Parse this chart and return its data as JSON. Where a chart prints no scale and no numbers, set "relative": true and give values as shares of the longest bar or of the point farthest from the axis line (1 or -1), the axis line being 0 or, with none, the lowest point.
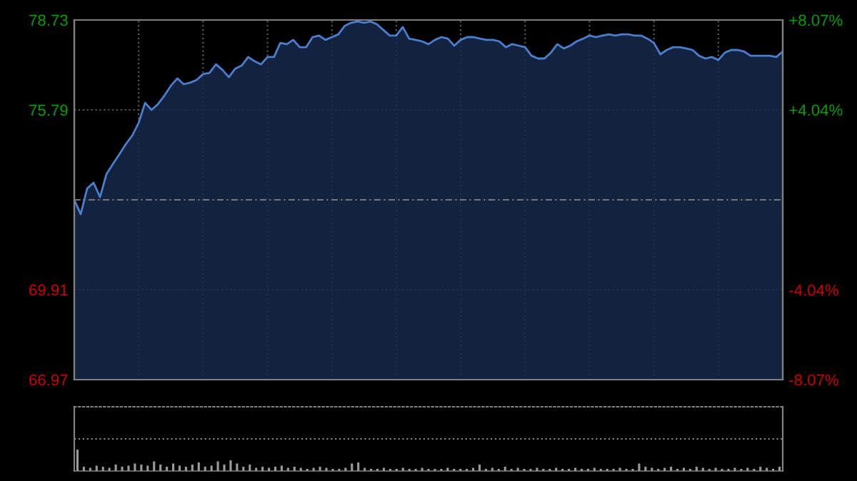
{
  "chart_data": [
    {
      "type": "area",
      "categories": [
        null,
        null,
        null,
        null,
        null,
        null,
        null,
        null,
        null,
        null,
        null,
        null,
        null,
        null,
        null,
        null,
        null,
        null,
        null,
        null,
        null,
        null,
        null,
        null,
        null,
        null,
        null,
        null,
        null,
        null,
        null,
        null,
        null,
        null,
        null,
        null,
        null,
        null,
        null,
        null,
        null,
        null,
        null,
        null,
        null,
        null,
        null,
        null,
        null,
        null,
        null,
        null,
        null,
        null,
        null,
        null,
        null,
        null,
        null,
        null,
        null,
        null,
        null,
        null,
        null,
        null,
        null,
        null,
        null,
        null,
        null,
        null,
        null,
        null,
        null,
        null,
        null,
        null,
        null,
        null,
        null,
        null,
        null,
        null,
        null,
        null,
        null,
        null,
        null,
        null,
        null,
        null,
        null,
        null,
        null,
        null,
        null,
        null,
        null,
        null,
        null,
        null,
        null,
        null,
        null,
        null,
        null,
        null,
        null,
        null,
        null
      ],
      "series": [
        {
          "color": "#4a7fd0",
          "values": [
            72.85,
            72.38,
            73.22,
            73.41,
            72.94,
            73.69,
            74.02,
            74.34,
            74.67,
            74.95,
            75.37,
            76.02,
            75.79,
            75.98,
            76.26,
            76.58,
            76.82,
            76.63,
            76.68,
            76.77,
            76.96,
            77.0,
            77.28,
            77.1,
            76.86,
            77.14,
            77.24,
            77.52,
            77.38,
            77.28,
            77.52,
            77.52,
            77.98,
            77.94,
            78.08,
            77.84,
            77.84,
            78.17,
            78.22,
            78.08,
            78.17,
            78.26,
            78.54,
            78.64,
            78.68,
            78.64,
            78.68,
            78.59,
            78.4,
            78.22,
            78.22,
            78.5,
            78.12,
            78.08,
            78.03,
            77.94,
            78.08,
            78.17,
            78.12,
            77.89,
            78.08,
            78.17,
            78.17,
            78.12,
            78.08,
            78.08,
            78.03,
            77.84,
            77.94,
            77.89,
            77.84,
            77.56,
            77.47,
            77.47,
            77.66,
            77.94,
            77.8,
            77.89,
            78.03,
            78.12,
            78.22,
            78.17,
            78.22,
            78.26,
            78.22,
            78.26,
            78.26,
            78.22,
            78.22,
            78.12,
            77.98,
            77.61,
            77.75,
            77.84,
            77.84,
            77.8,
            77.75,
            77.56,
            77.47,
            77.52,
            77.42,
            77.66,
            77.75,
            77.75,
            77.7,
            77.56,
            77.56,
            77.56,
            77.56,
            77.52,
            77.7
          ]
        }
      ],
      "ylim": [
        66.97,
        78.73
      ],
      "yticks": [
        66.97,
        69.91,
        {
          "value": 72.85,
          "label": null
        },
        75.79,
        78.73
      ],
      "y2lim": [
        -8.07,
        8.07
      ],
      "y2ticks": [
        {
          "value": -8.07,
          "label": "-8.07%"
        },
        {
          "value": -4.04,
          "label": "-4.04%"
        },
        {
          "value": 0,
          "label": null
        },
        {
          "value": 4.04,
          "label": "+4.04%"
        },
        {
          "value": 8.07,
          "label": "+8.07%"
        }
      ],
      "ref_lines": [
        {
          "axis": "y",
          "value": 72.85,
          "label": null,
          "line_style": "dashed"
        }
      ],
      "grid": true,
      "tick_labels": "y"
    },
    {
      "type": "bar",
      "relative": true,
      "color": "#9a9a9a",
      "categories": [
        null,
        null,
        null,
        null,
        null,
        null,
        null,
        null,
        null,
        null,
        null,
        null,
        null,
        null,
        null,
        null,
        null,
        null,
        null,
        null,
        null,
        null,
        null,
        null,
        null,
        null,
        null,
        null,
        null,
        null,
        null,
        null,
        null,
        null,
        null,
        null,
        null,
        null,
        null,
        null,
        null,
        null,
        null,
        null,
        null,
        null,
        null,
        null,
        null,
        null,
        null,
        null,
        null,
        null,
        null,
        null,
        null,
        null,
        null,
        null,
        null,
        null,
        null,
        null,
        null,
        null,
        null,
        null,
        null,
        null,
        null,
        null,
        null,
        null,
        null,
        null,
        null,
        null,
        null,
        null,
        null,
        null,
        null,
        null,
        null,
        null,
        null,
        null,
        null,
        null,
        null,
        null,
        null,
        null,
        null,
        null,
        null,
        null,
        null,
        null,
        null,
        null,
        null,
        null,
        null,
        null,
        null,
        null,
        null,
        null,
        null
      ],
      "values": [
        1.0,
        0.2,
        0.15,
        0.25,
        0.2,
        0.15,
        0.3,
        0.2,
        0.25,
        0.35,
        0.3,
        0.25,
        0.45,
        0.3,
        0.2,
        0.35,
        0.25,
        0.2,
        0.3,
        0.4,
        0.2,
        0.25,
        0.45,
        0.3,
        0.5,
        0.35,
        0.2,
        0.3,
        0.15,
        0.2,
        0.15,
        0.2,
        0.25,
        0.15,
        0.2,
        0.15,
        0.1,
        0.15,
        0.2,
        0.15,
        0.1,
        0.1,
        0.15,
        0.35,
        0.4,
        0.15,
        0.1,
        0.1,
        0.15,
        0.1,
        0.1,
        0.15,
        0.1,
        0.1,
        0.15,
        0.1,
        0.1,
        0.1,
        0.15,
        0.1,
        0.1,
        0.1,
        0.15,
        0.3,
        0.1,
        0.15,
        0.1,
        0.2,
        0.1,
        0.15,
        0.1,
        0.1,
        0.15,
        0.1,
        0.1,
        0.15,
        0.1,
        0.1,
        0.15,
        0.1,
        0.1,
        0.15,
        0.1,
        0.1,
        0.1,
        0.15,
        0.1,
        0.1,
        0.35,
        0.2,
        0.15,
        0.1,
        0.15,
        0.2,
        0.1,
        0.15,
        0.1,
        0.2,
        0.15,
        0.1,
        0.15,
        0.1,
        0.1,
        0.15,
        0.1,
        0.15,
        0.1,
        0.2,
        0.15,
        0.1,
        0.2
      ]
    }
  ]
}
